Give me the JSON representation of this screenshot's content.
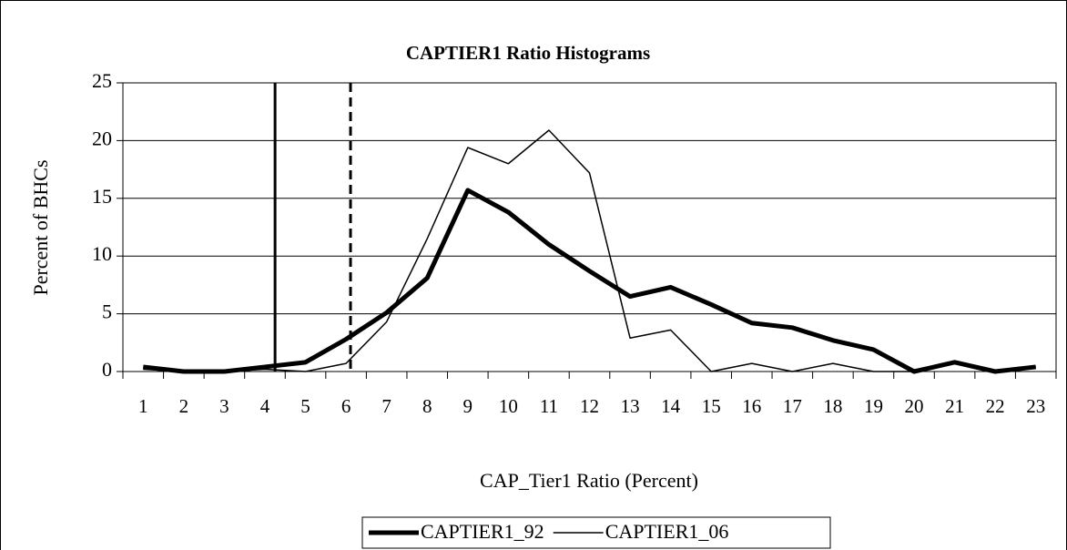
{
  "chart_data": {
    "type": "line",
    "title": "CAPTIER1 Ratio Histograms",
    "x_label": "CAP_Tier1 Ratio (Percent)",
    "y_label": "Percent of BHCs",
    "x": [
      1,
      2,
      3,
      4,
      5,
      6,
      7,
      8,
      9,
      10,
      11,
      12,
      13,
      14,
      15,
      16,
      17,
      18,
      19,
      20,
      21,
      22,
      23
    ],
    "xlim": [
      0.5,
      23.5
    ],
    "xticks": [
      1,
      2,
      3,
      4,
      5,
      6,
      7,
      8,
      9,
      10,
      11,
      12,
      13,
      14,
      15,
      16,
      17,
      18,
      19,
      20,
      21,
      22,
      23
    ],
    "ylim": [
      0,
      25
    ],
    "yticks": [
      0,
      5,
      10,
      15,
      20,
      25
    ],
    "grid": true,
    "legend": "bottom",
    "reference_lines": [
      {
        "x": 4.25,
        "style": "solid"
      },
      {
        "x": 6.11,
        "style": "dashed"
      }
    ],
    "series": [
      {
        "name": "CAPTIER1_92",
        "color": "#000000",
        "width": 5,
        "values": [
          0.4,
          0,
          0,
          0.4,
          0.8,
          2.8,
          5.1,
          8.1,
          15.7,
          13.8,
          11.0,
          8.7,
          6.5,
          7.3,
          5.8,
          4.2,
          3.8,
          2.7,
          1.9,
          0,
          0.8,
          0,
          0.4
        ]
      },
      {
        "name": "CAPTIER1_06",
        "color": "#000000",
        "width": 1.5,
        "values": [
          0.2,
          0,
          0,
          0.2,
          0,
          0.7,
          4.3,
          11.5,
          19.4,
          18.0,
          20.9,
          17.2,
          2.9,
          3.6,
          0,
          0.7,
          0,
          0.7,
          0,
          0,
          0.7,
          0,
          0.4
        ]
      }
    ]
  }
}
